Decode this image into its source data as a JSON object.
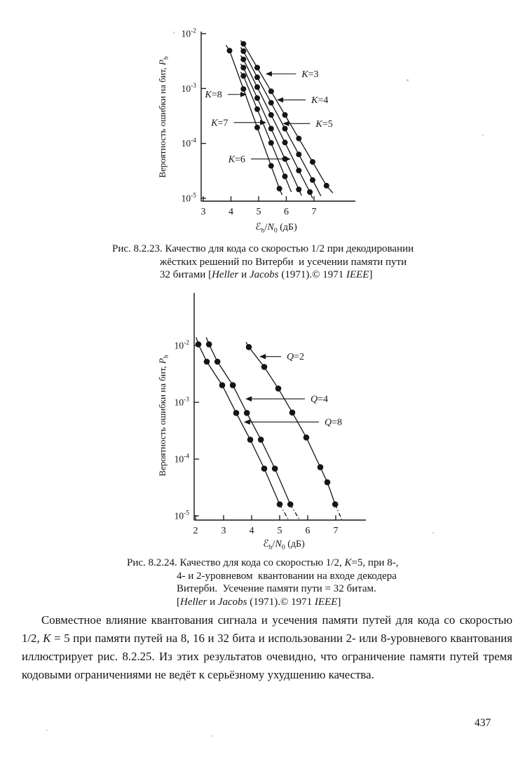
{
  "page": {
    "number": "437",
    "ink_color": "#151515",
    "background": "#ffffff"
  },
  "figures": [
    {
      "id": "fig-8-2-23",
      "caption_lines": [
        [
          [
            "Рис. 8.2.23. Качество для кода со скоростью 1/2 при декодировании",
            "n"
          ]
        ],
        [
          [
            "жёстких решений по Витерби  и усечении памяти пути",
            "n"
          ]
        ],
        [
          [
            "32 битами [",
            "n"
          ],
          [
            "Heller",
            "i"
          ],
          [
            " и ",
            "n"
          ],
          [
            "Jacobs",
            "i"
          ],
          [
            " (1971).© 1971 ",
            "n"
          ],
          [
            "IEEE",
            "i"
          ],
          [
            "]",
            "n"
          ]
        ]
      ]
    },
    {
      "id": "fig-8-2-24",
      "caption_lines": [
        [
          [
            "Рис. 8.2.24. Качество для кода со скоростью 1/2, ",
            "n"
          ],
          [
            "K",
            "i"
          ],
          [
            "=5, при 8-,",
            "n"
          ]
        ],
        [
          [
            "4- и 2-уровневом  квантовании на входе декодера",
            "n"
          ]
        ],
        [
          [
            "Витерби.  Усечение памяти пути = 32 битам.",
            "n"
          ]
        ],
        [
          [
            "[",
            "n"
          ],
          [
            "Heller",
            "i"
          ],
          [
            " и ",
            "n"
          ],
          [
            "Jacobs",
            "i"
          ],
          [
            " (1971).© 1971 ",
            "n"
          ],
          [
            "IEEE",
            "i"
          ],
          [
            "]",
            "n"
          ]
        ]
      ]
    }
  ],
  "paragraph": {
    "segments": [
      [
        "Совместное влияние квантования сигнала и усечения памяти путей для кода со скоростью 1/2, ",
        "n"
      ],
      [
        "K",
        "i"
      ],
      [
        " = 5 при памяти путей на 8, 16 и 32 бита и использовании 2- или 8-уровневого квантования иллюстрирует рис. 8.2.25. Из этих результатов очевидно, что ограничение памяти путей тремя кодовыми ограничениями не ведёт к серьёзному ухудшению качества.",
        "n"
      ]
    ]
  },
  "chart_data": [
    {
      "id": "fig-8-2-23",
      "type": "line",
      "title": "",
      "xlabel_text": "ℰb/N0 (дБ)",
      "ylabel_text": "Вероятность ошибки на бит, Pb",
      "xlabel_segments": [
        [
          "ℰ",
          "e"
        ],
        [
          "b",
          "s"
        ],
        [
          "/",
          "n"
        ],
        [
          "N",
          "i"
        ],
        [
          "0",
          "s"
        ],
        [
          " (дБ)",
          "n"
        ]
      ],
      "ylabel_segments": [
        [
          "Вероятность ошибки на бит, ",
          "n"
        ],
        [
          "P",
          "i"
        ],
        [
          "b",
          "s"
        ]
      ],
      "x_ticks": [
        3,
        4,
        5,
        6,
        7
      ],
      "y_tick_exponents": [
        -2,
        -3,
        -4,
        -5
      ],
      "xlim": [
        2.9,
        8.5
      ],
      "ylim": [
        1e-05,
        0.01
      ],
      "grid": false,
      "marker": "filled-circle",
      "series": [
        {
          "name": "K=8",
          "line_start": [
            3.82,
            0.0062
          ],
          "points": [
            [
              3.95,
              0.0049
            ],
            [
              4.45,
              0.00098
            ],
            [
              4.95,
              0.000195
            ],
            [
              5.45,
              3.9e-05
            ],
            [
              5.75,
              1.5e-05
            ]
          ],
          "line_end": [
            5.85,
            1.15e-05
          ]
        },
        {
          "name": "K=7",
          "line_start": [
            4.35,
            0.002
          ],
          "points": [
            [
              4.45,
              0.0017
            ],
            [
              4.95,
              0.00042
            ],
            [
              5.45,
              0.000102
            ],
            [
              5.95,
              2.5e-05
            ]
          ],
          "line_end": [
            6.18,
            1.3e-05
          ]
        },
        {
          "name": "K=6",
          "line_start": [
            4.35,
            0.0028
          ],
          "points": [
            [
              4.45,
              0.0024
            ],
            [
              4.95,
              0.00067
            ],
            [
              5.45,
              0.000186
            ],
            [
              5.95,
              5.2e-05
            ],
            [
              6.45,
              1.45e-05
            ]
          ],
          "line_end": [
            6.55,
            1.12e-05
          ]
        },
        {
          "name": "K=5",
          "line_start": [
            4.35,
            0.004
          ],
          "points": [
            [
              4.45,
              0.0034
            ],
            [
              4.95,
              0.00106
            ],
            [
              5.45,
              0.00033
            ],
            [
              5.95,
              0.000104
            ],
            [
              6.45,
              3.2e-05
            ],
            [
              6.85,
              1.3e-05
            ]
          ],
          "line_end": [
            6.95,
            1e-05
          ]
        },
        {
          "name": "K=4",
          "line_start": [
            4.35,
            0.0056
          ],
          "points": [
            [
              4.45,
              0.0048
            ],
            [
              4.95,
              0.0016
            ],
            [
              5.45,
              0.00055
            ],
            [
              5.95,
              0.000186
            ],
            [
              6.45,
              6.3e-05
            ],
            [
              6.95,
              2.15e-05
            ]
          ],
          "line_end": [
            7.25,
            1.1e-05
          ]
        },
        {
          "name": "K=3",
          "line_start": [
            4.35,
            0.0075
          ],
          "points": [
            [
              4.45,
              0.0065
            ],
            [
              4.95,
              0.0024
            ],
            [
              5.45,
              0.00089
            ],
            [
              5.95,
              0.00033
            ],
            [
              6.45,
              0.000123
            ],
            [
              6.95,
              4.6e-05
            ],
            [
              7.45,
              1.7e-05
            ]
          ],
          "line_end": [
            7.68,
            1.25e-05
          ]
        }
      ],
      "annotations": [
        {
          "label": "K=3",
          "y": 0.00185,
          "tip_x": 5.25,
          "start_x": 6.35,
          "side": "right"
        },
        {
          "label": "K=4",
          "y": 0.00062,
          "tip_x": 5.66,
          "start_x": 6.7,
          "side": "right"
        },
        {
          "label": "K=5",
          "y": 0.00023,
          "tip_x": 5.87,
          "start_x": 6.86,
          "side": "right"
        },
        {
          "label": "K=8",
          "y": 0.00078,
          "tip_x": 4.57,
          "start_x": 3.88,
          "side": "left"
        },
        {
          "label": "K=7",
          "y": 0.00024,
          "tip_x": 5.28,
          "start_x": 4.1,
          "side": "left"
        },
        {
          "label": "K=6",
          "y": 5.2e-05,
          "tip_x": 6.16,
          "start_x": 4.72,
          "side": "left"
        }
      ]
    },
    {
      "id": "fig-8-2-24",
      "type": "line",
      "title": "",
      "xlabel_text": "ℰb/N0 (дБ)",
      "ylabel_text": "Вероятность ошибки на бит, Pb",
      "xlabel_segments": [
        [
          "ℰ",
          "e"
        ],
        [
          "b",
          "s"
        ],
        [
          "/",
          "n"
        ],
        [
          "N",
          "i"
        ],
        [
          "0",
          "s"
        ],
        [
          " (дБ)",
          "n"
        ]
      ],
      "ylabel_segments": [
        [
          "Вероятность ошибки на бит, ",
          "n"
        ],
        [
          "P",
          "i"
        ],
        [
          "b",
          "s"
        ]
      ],
      "x_ticks": [
        2,
        3,
        4,
        5,
        6,
        7
      ],
      "y_tick_exponents": [
        -2,
        -3,
        -4,
        -5
      ],
      "xlim": [
        1.9,
        8.1
      ],
      "ylim": [
        1e-05,
        0.08
      ],
      "grid": false,
      "marker": "filled-circle",
      "series": [
        {
          "name": "Q=8",
          "line_start": [
            2.02,
            0.014
          ],
          "points": [
            [
              2.1,
              0.0105
            ],
            [
              2.4,
              0.0052
            ],
            [
              2.95,
              0.002
            ],
            [
              3.45,
              0.00065
            ],
            [
              3.95,
              0.00022
            ],
            [
              4.45,
              6.8e-05
            ],
            [
              5.0,
              1.6e-05
            ]
          ],
          "dash_to": [
            5.45,
            6.5e-06
          ]
        },
        {
          "name": "Q=4",
          "line_start": [
            2.38,
            0.014
          ],
          "points": [
            [
              2.48,
              0.0105
            ],
            [
              2.78,
              0.0052
            ],
            [
              3.33,
              0.002
            ],
            [
              3.83,
              0.00065
            ],
            [
              4.33,
              0.00022
            ],
            [
              4.83,
              6.8e-05
            ],
            [
              5.38,
              1.6e-05
            ]
          ],
          "dash_to": [
            5.85,
            6.5e-06
          ]
        },
        {
          "name": "Q=2",
          "line_start": [
            3.8,
            0.0115
          ],
          "points": [
            [
              3.9,
              0.0094
            ],
            [
              4.45,
              0.0042
            ],
            [
              4.95,
              0.00175
            ],
            [
              5.45,
              0.00066
            ],
            [
              5.95,
              0.00024
            ],
            [
              6.45,
              7.2e-05
            ],
            [
              6.7,
              3.9e-05
            ],
            [
              6.98,
              1.6e-05
            ]
          ],
          "dash_to": [
            7.35,
            6e-06
          ]
        }
      ],
      "annotations": [
        {
          "label": "Q=2",
          "y": 0.0064,
          "tip_x": 4.28,
          "start_x": 5.05,
          "side": "right"
        },
        {
          "label": "Q=4",
          "y": 0.00115,
          "tip_x": 3.78,
          "start_x": 5.9,
          "side": "right"
        },
        {
          "label": "Q=8",
          "y": 0.00045,
          "tip_x": 3.72,
          "start_x": 6.4,
          "side": "right"
        }
      ]
    }
  ]
}
